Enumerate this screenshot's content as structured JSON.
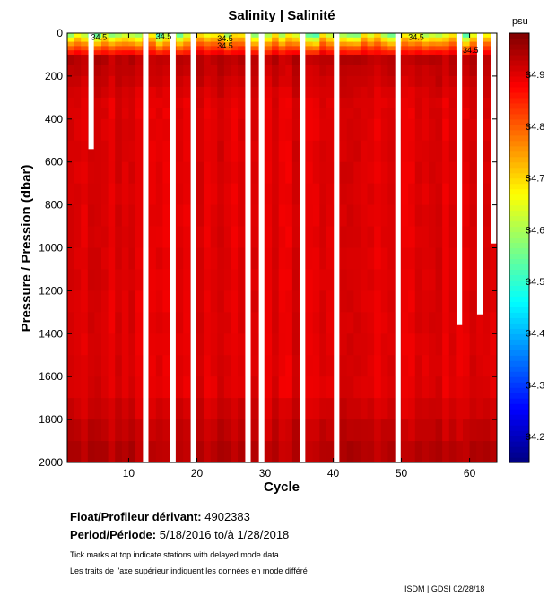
{
  "chart_data": {
    "type": "heatmap",
    "title": "Salinity | Salinité",
    "xlabel": "Cycle",
    "ylabel": "Pressure / Pression (dbar)",
    "xlim": [
      1,
      64
    ],
    "ylim": [
      0,
      2000
    ],
    "y_inverted": true,
    "x_ticks": [
      10,
      20,
      30,
      40,
      50,
      60
    ],
    "y_ticks": [
      0,
      200,
      400,
      600,
      800,
      1000,
      1200,
      1400,
      1600,
      1800,
      2000
    ],
    "colorbar": {
      "unit": "psu",
      "range": [
        34.15,
        34.98
      ],
      "ticks": [
        34.2,
        34.3,
        34.4,
        34.5,
        34.6,
        34.7,
        34.8,
        34.9
      ],
      "tick_labels": [
        "34.2",
        "34.3",
        "34.4",
        "34.5",
        "34.6",
        "34.7",
        "34.8",
        "34.9"
      ]
    },
    "contour_labels": [
      {
        "text": "34.5",
        "cycle": 4.5,
        "pressure": 15
      },
      {
        "text": "34.5",
        "cycle": 14,
        "pressure": 10
      },
      {
        "text": "34.5",
        "cycle": 23,
        "pressure": 20
      },
      {
        "text": "34.5",
        "cycle": 23,
        "pressure": 55
      },
      {
        "text": "34.5",
        "cycle": 51,
        "pressure": 15
      },
      {
        "text": "34.5",
        "cycle": 59,
        "pressure": 75
      }
    ],
    "missing_profiles": [
      {
        "cycle": 4,
        "max_pressure": 540
      },
      {
        "cycle": 12,
        "max_pressure": 2000
      },
      {
        "cycle": 16,
        "max_pressure": 2000
      },
      {
        "cycle": 19,
        "max_pressure": 2000
      },
      {
        "cycle": 27,
        "max_pressure": 2000
      },
      {
        "cycle": 29,
        "max_pressure": 2000
      },
      {
        "cycle": 35,
        "max_pressure": 2000
      },
      {
        "cycle": 40,
        "max_pressure": 2000
      },
      {
        "cycle": 49,
        "max_pressure": 2000
      },
      {
        "cycle": 58,
        "max_pressure": 1360
      },
      {
        "cycle": 61,
        "max_pressure": 1310
      },
      {
        "cycle": 63,
        "max_pressure": 980
      }
    ],
    "profile_description": "Surface salinity ~34.4-34.6 psu, rising to ~34.85-34.95 psu below 100 dbar; near-uniform 34.88-34.92 psu at depth"
  },
  "info": {
    "float_label": "Float/Profileur dérivant:",
    "float_id": "4902383",
    "period_label": "Period/Période:",
    "period_value": "5/18/2016  to/à  1/28/2018",
    "note_en": "Tick marks at top indicate stations with delayed mode data",
    "note_fr": "Les traits de l'axe supérieur indiquent les données en mode différé",
    "footer": "ISDM | GDSI  02/28/18"
  }
}
